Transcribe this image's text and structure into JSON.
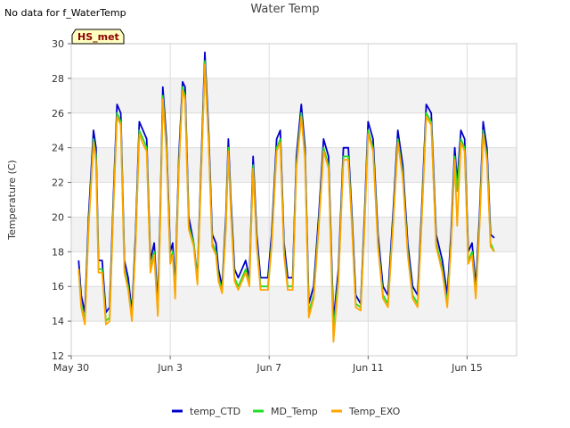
{
  "no_data_note": "No data for f_WaterTemp",
  "chart_data": {
    "type": "line",
    "title": "Water Temp",
    "xlabel": "",
    "ylabel": "Temperature (C)",
    "xlim": [
      0,
      18
    ],
    "ylim": [
      12,
      30
    ],
    "x_ticks": [
      {
        "value": 0,
        "label": "May 30"
      },
      {
        "value": 4,
        "label": "Jun 3"
      },
      {
        "value": 8,
        "label": "Jun 7"
      },
      {
        "value": 12,
        "label": "Jun 11"
      },
      {
        "value": 16,
        "label": "Jun 15"
      }
    ],
    "y_ticks": [
      12,
      14,
      16,
      18,
      20,
      22,
      24,
      26,
      28,
      30
    ],
    "annotation": "HS_met",
    "legend_position": "bottom",
    "series": [
      {
        "name": "temp_CTD",
        "color": "#0000cc",
        "x": [
          0.3,
          0.4,
          0.55,
          0.7,
          0.9,
          1.0,
          1.1,
          1.25,
          1.4,
          1.55,
          1.7,
          1.85,
          2.0,
          2.15,
          2.3,
          2.45,
          2.6,
          2.75,
          2.9,
          3.05,
          3.2,
          3.35,
          3.5,
          3.6,
          3.7,
          3.85,
          4.0,
          4.1,
          4.2,
          4.35,
          4.5,
          4.6,
          4.75,
          4.95,
          5.1,
          5.25,
          5.4,
          5.55,
          5.7,
          5.85,
          5.95,
          6.1,
          6.25,
          6.35,
          6.45,
          6.6,
          6.75,
          6.9,
          7.05,
          7.2,
          7.35,
          7.5,
          7.65,
          7.8,
          7.95,
          8.1,
          8.3,
          8.45,
          8.6,
          8.75,
          8.95,
          9.1,
          9.3,
          9.45,
          9.6,
          9.8,
          10.0,
          10.2,
          10.4,
          10.6,
          10.8,
          11.0,
          11.2,
          11.35,
          11.5,
          11.7,
          11.85,
          12.0,
          12.2,
          12.4,
          12.6,
          12.8,
          13.0,
          13.2,
          13.4,
          13.6,
          13.8,
          14.0,
          14.15,
          14.35,
          14.55,
          14.75,
          15.0,
          15.2,
          15.35,
          15.5,
          15.6,
          15.75,
          15.9,
          16.05,
          16.2,
          16.35,
          16.5,
          16.65,
          16.8,
          16.95,
          17.1
        ],
        "y": [
          17.5,
          15.5,
          14.5,
          20,
          25,
          24,
          17.5,
          17.5,
          14.5,
          14.8,
          21,
          26.5,
          26,
          17.5,
          16.5,
          14.5,
          19,
          25.5,
          25,
          24.5,
          17.5,
          18.5,
          15,
          20.5,
          27.5,
          24.5,
          18,
          18.5,
          16,
          23.5,
          27.8,
          27.5,
          20,
          18.5,
          16.5,
          23,
          29.5,
          25,
          19,
          18.5,
          17,
          16,
          20,
          24.5,
          21,
          17,
          16.5,
          17,
          17.5,
          16.5,
          23.5,
          19,
          16.5,
          16.5,
          16.5,
          19,
          24.5,
          25,
          18.5,
          16.5,
          16.5,
          23.5,
          26.5,
          24,
          15,
          16,
          20,
          24.5,
          23.5,
          14,
          17,
          24,
          24,
          20,
          15.5,
          15,
          20,
          25.5,
          24.5,
          19,
          16,
          15.5,
          20,
          25,
          23,
          18.5,
          16,
          15.5,
          20,
          26.5,
          26,
          19,
          17.5,
          15.5,
          19,
          24,
          22,
          25,
          24.5,
          18,
          18.5,
          16,
          20,
          25.5,
          24,
          19,
          18.8
        ]
      },
      {
        "name": "MD_Temp",
        "color": "#22dd22",
        "x": [
          0.3,
          0.4,
          0.55,
          0.7,
          0.9,
          1.0,
          1.1,
          1.25,
          1.4,
          1.55,
          1.7,
          1.85,
          2.0,
          2.15,
          2.3,
          2.45,
          2.6,
          2.75,
          2.9,
          3.05,
          3.2,
          3.35,
          3.5,
          3.6,
          3.7,
          3.85,
          4.0,
          4.1,
          4.2,
          4.35,
          4.5,
          4.6,
          4.75,
          4.95,
          5.1,
          5.25,
          5.4,
          5.55,
          5.7,
          5.85,
          5.95,
          6.1,
          6.25,
          6.35,
          6.45,
          6.6,
          6.75,
          6.9,
          7.05,
          7.2,
          7.35,
          7.5,
          7.65,
          7.8,
          7.95,
          8.1,
          8.3,
          8.45,
          8.6,
          8.75,
          8.95,
          9.1,
          9.3,
          9.45,
          9.6,
          9.8,
          10.0,
          10.2,
          10.4,
          10.6,
          10.8,
          11.0,
          11.2,
          11.35,
          11.5,
          11.7,
          11.85,
          12.0,
          12.2,
          12.4,
          12.6,
          12.8,
          13.0,
          13.2,
          13.4,
          13.6,
          13.8,
          14.0,
          14.15,
          14.35,
          14.55,
          14.75,
          15.0,
          15.2,
          15.35,
          15.5,
          15.6,
          15.75,
          15.9,
          16.05,
          16.2,
          16.35,
          16.5,
          16.65,
          16.8,
          16.95,
          17.1
        ],
        "y": [
          17,
          15,
          14,
          19.5,
          24.5,
          23.5,
          17,
          17,
          14,
          14.2,
          20.5,
          26,
          25.5,
          17,
          16,
          14.2,
          18.5,
          25,
          24.5,
          24,
          17,
          18,
          14.5,
          20,
          27,
          24,
          17.5,
          18,
          15.5,
          23,
          27.5,
          27,
          19.5,
          18.5,
          16.3,
          22.5,
          29,
          24.5,
          18.5,
          18,
          16.5,
          15.8,
          19.5,
          24,
          20.5,
          16.5,
          16,
          16.5,
          17,
          16.2,
          23,
          18.5,
          16,
          16,
          16,
          18.5,
          24,
          24.5,
          18,
          16,
          16,
          23,
          26,
          23.5,
          14.5,
          15.5,
          19.5,
          24,
          23,
          13.5,
          16.5,
          23.5,
          23.5,
          19.5,
          15,
          14.8,
          19.5,
          25,
          24,
          18.5,
          15.5,
          15,
          19.5,
          24.5,
          22.5,
          18,
          15.5,
          15,
          19.5,
          26,
          25.5,
          18.5,
          17,
          15,
          18.5,
          23.5,
          21.5,
          24.5,
          24,
          17.5,
          18,
          15.5,
          19.5,
          25,
          23.5,
          18.5,
          18
        ]
      },
      {
        "name": "Temp_EXO",
        "color": "#ffa500",
        "x": [
          0.3,
          0.4,
          0.55,
          0.7,
          0.9,
          1.0,
          1.1,
          1.25,
          1.4,
          1.55,
          1.7,
          1.85,
          2.0,
          2.15,
          2.3,
          2.45,
          2.6,
          2.75,
          2.9,
          3.05,
          3.2,
          3.35,
          3.5,
          3.6,
          3.7,
          3.85,
          4.0,
          4.1,
          4.2,
          4.35,
          4.5,
          4.6,
          4.75,
          4.95,
          5.1,
          5.25,
          5.4,
          5.55,
          5.7,
          5.85,
          5.95,
          6.1,
          6.25,
          6.35,
          6.45,
          6.6,
          6.75,
          6.9,
          7.05,
          7.2,
          7.35,
          7.5,
          7.65,
          7.8,
          7.95,
          8.1,
          8.3,
          8.45,
          8.6,
          8.75,
          8.95,
          9.1,
          9.3,
          9.45,
          9.6,
          9.8,
          10.0,
          10.2,
          10.4,
          10.6,
          10.8,
          11.0,
          11.2,
          11.35,
          11.5,
          11.7,
          11.85,
          12.0,
          12.2,
          12.4,
          12.6,
          12.8,
          13.0,
          13.2,
          13.4,
          13.6,
          13.8,
          14.0,
          14.15,
          14.35,
          14.55,
          14.75,
          15.0,
          15.2,
          15.35,
          15.5,
          15.6,
          15.75,
          15.9,
          16.05,
          16.2,
          16.35,
          16.5,
          16.65,
          16.8,
          16.95,
          17.1
        ],
        "y": [
          17,
          14.8,
          13.8,
          19.3,
          24.3,
          23.2,
          16.8,
          16.8,
          13.8,
          14,
          20.3,
          25.8,
          25.3,
          16.8,
          15.8,
          14,
          18.3,
          24.8,
          24.2,
          23.8,
          16.8,
          17.8,
          14.3,
          19.8,
          26.8,
          23.8,
          17.3,
          17.8,
          15.3,
          22.8,
          27.3,
          26.8,
          19.3,
          18.3,
          16.1,
          22.3,
          28.8,
          24.3,
          18.3,
          17.8,
          16.3,
          15.6,
          19.3,
          23.8,
          20.3,
          16.3,
          15.8,
          16.3,
          16.8,
          16,
          22.8,
          18.3,
          15.8,
          15.8,
          15.8,
          18.3,
          23.8,
          24.3,
          17.8,
          15.8,
          15.8,
          22.8,
          25.8,
          23.3,
          14.2,
          15.3,
          19.3,
          23.8,
          22.8,
          12.8,
          16.3,
          23.3,
          23.3,
          19.3,
          14.8,
          14.6,
          19.3,
          24.8,
          23.8,
          18.3,
          15.3,
          14.8,
          19.3,
          24.3,
          22.3,
          17.8,
          15.3,
          14.8,
          19.3,
          25.8,
          25.3,
          18.3,
          16.8,
          14.8,
          18.3,
          23.3,
          19.5,
          24.3,
          23.8,
          17.3,
          17.8,
          15.3,
          19.3,
          24.8,
          23.3,
          18.3,
          18
        ]
      }
    ]
  }
}
